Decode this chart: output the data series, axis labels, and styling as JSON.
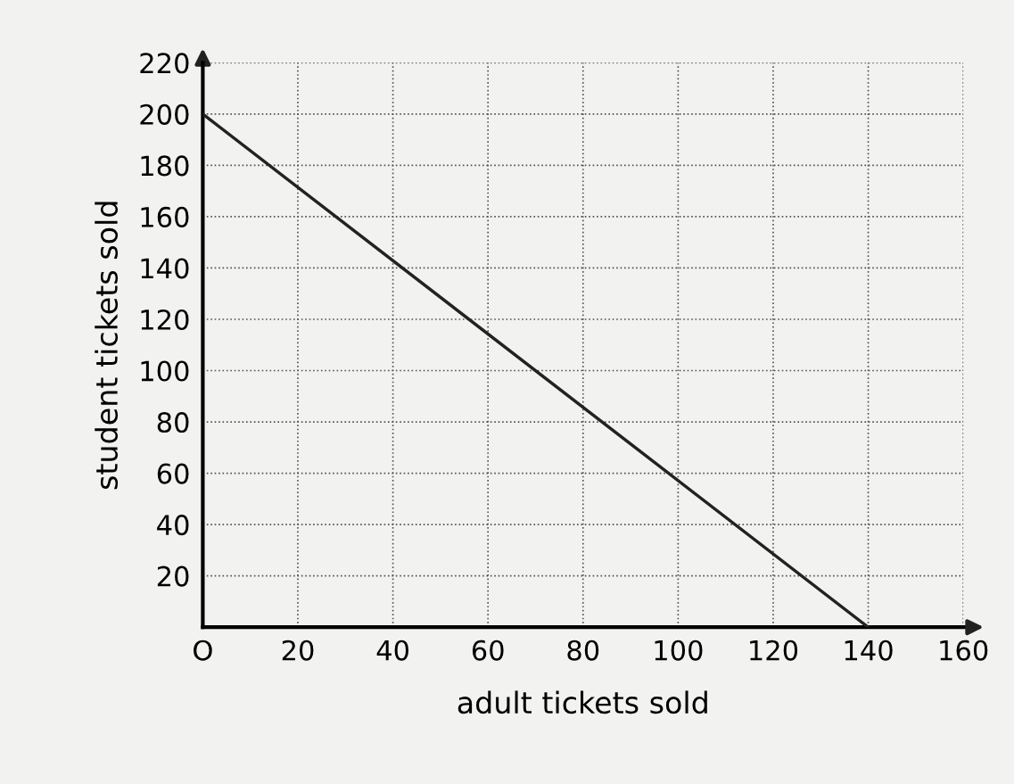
{
  "chart_data": {
    "type": "line",
    "xlabel": "adult tickets sold",
    "ylabel": "student tickets sold",
    "x": [
      0,
      140
    ],
    "series": [
      {
        "color": "#222222",
        "values": [
          200,
          0
        ]
      }
    ],
    "xlim": [
      0,
      160
    ],
    "ylim": [
      0,
      220
    ],
    "xticks": [
      {
        "value": 0,
        "label": "O"
      },
      20,
      40,
      60,
      80,
      100,
      120,
      140,
      160
    ],
    "yticks": [
      20,
      40,
      60,
      80,
      100,
      120,
      140,
      160,
      180,
      200,
      220
    ],
    "grid": true,
    "line_style": "solid",
    "marker": "none"
  }
}
